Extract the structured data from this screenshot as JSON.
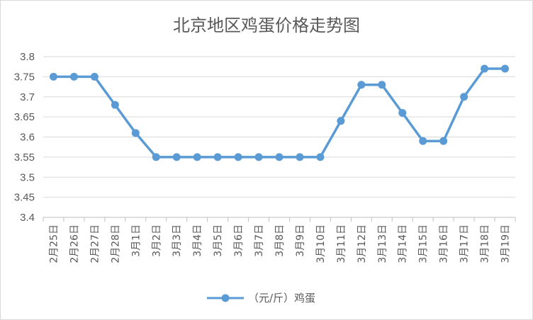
{
  "chart_data": {
    "type": "line",
    "title": "北京地区鸡蛋价格走势图",
    "categories": [
      "2月25日",
      "2月26日",
      "2月27日",
      "2月28日",
      "3月1日",
      "3月2日",
      "3月3日",
      "3月4日",
      "3月5日",
      "3月6日",
      "3月7日",
      "3月8日",
      "3月9日",
      "3月10日",
      "3月11日",
      "3月12日",
      "3月13日",
      "3月14日",
      "3月15日",
      "3月16日",
      "3月17日",
      "3月18日",
      "3月19日"
    ],
    "series": [
      {
        "name": "（元/斤）鸡蛋",
        "color": "#5b9bd5",
        "values": [
          3.75,
          3.75,
          3.75,
          3.68,
          3.61,
          3.55,
          3.55,
          3.55,
          3.55,
          3.55,
          3.55,
          3.55,
          3.55,
          3.55,
          3.64,
          3.73,
          3.73,
          3.66,
          3.59,
          3.59,
          3.7,
          3.77,
          3.77
        ]
      }
    ],
    "ylim": [
      3.4,
      3.8
    ],
    "yticks": [
      "3.4",
      "3.45",
      "3.5",
      "3.55",
      "3.6",
      "3.65",
      "3.7",
      "3.75",
      "3.8"
    ],
    "grid": true,
    "legend": "bottom"
  }
}
